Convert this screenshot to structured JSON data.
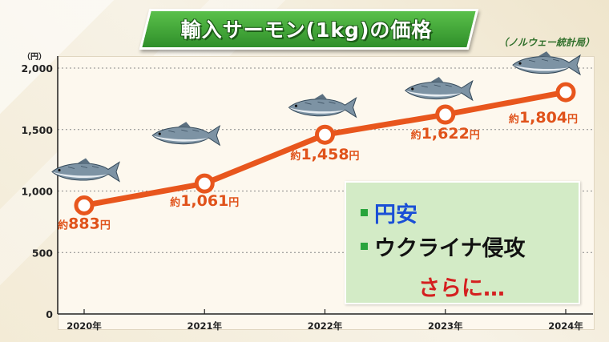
{
  "title": "輸入サーモン(1kg)の価格",
  "source": "（ノルウェー統計局）",
  "callout": {
    "items": [
      "円安",
      "ウクライナ侵攻"
    ],
    "tail": "さらに…"
  },
  "colors": {
    "line": "#e8561d",
    "title_bg": "#3ea534",
    "callout_bg": "#d3ebc6"
  },
  "icons": [
    "salmon-icon"
  ],
  "chart_data": {
    "type": "line",
    "x": [
      "2020年",
      "2021年",
      "2022年",
      "2023年",
      "2024年"
    ],
    "series": [
      {
        "values": [
          883,
          1061,
          1458,
          1622,
          1804
        ]
      }
    ],
    "data_labels": [
      "約883円",
      "約1,061円",
      "約1,458円",
      "約1,622円",
      "約1,804円"
    ],
    "y_unit": "（円）",
    "yticks": [
      0,
      500,
      1000,
      1500,
      2000
    ],
    "ytick_labels": [
      "0",
      "500",
      "1,000",
      "1,500",
      "2,000"
    ],
    "ylim": [
      0,
      2000
    ],
    "grid": true,
    "legend": "none"
  }
}
